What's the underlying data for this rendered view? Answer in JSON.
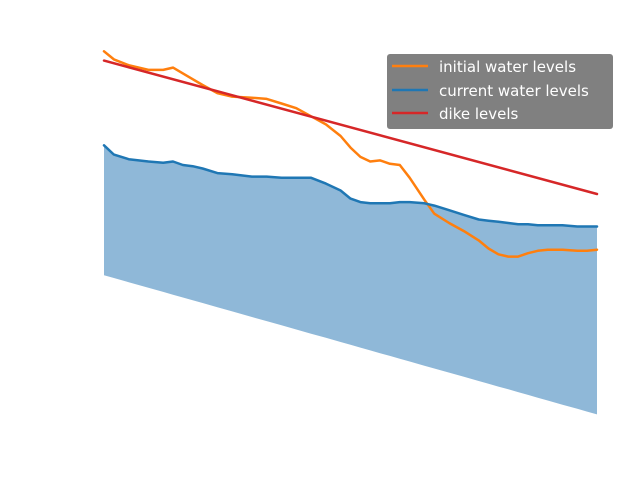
{
  "chart_data": {
    "type": "line",
    "title": "",
    "xlabel": "",
    "ylabel": "",
    "axes_visible": false,
    "grid": false,
    "legend_position": "top-right",
    "legend_background": "#808080",
    "legend_text_color": "#ffffff",
    "xlim": [
      0,
      1
    ],
    "ylim": [
      -0.5,
      3
    ],
    "fill": {
      "name": "current water levels area",
      "color": "#8fb8d8",
      "between": [
        "bed levels",
        "current water levels"
      ]
    },
    "series": [
      {
        "name": "initial water levels",
        "color": "#ff7f0e",
        "x": [
          0,
          0.02,
          0.05,
          0.09,
          0.12,
          0.14,
          0.16,
          0.18,
          0.2,
          0.23,
          0.26,
          0.3,
          0.33,
          0.36,
          0.39,
          0.42,
          0.45,
          0.48,
          0.5,
          0.52,
          0.54,
          0.56,
          0.58,
          0.6,
          0.62,
          0.65,
          0.67,
          0.7,
          0.73,
          0.76,
          0.78,
          0.8,
          0.82,
          0.84,
          0.86,
          0.88,
          0.9,
          0.93,
          0.96,
          0.98,
          1.0
        ],
        "y": [
          2.73,
          2.66,
          2.61,
          2.57,
          2.57,
          2.59,
          2.54,
          2.49,
          2.44,
          2.37,
          2.34,
          2.33,
          2.32,
          2.28,
          2.24,
          2.17,
          2.1,
          2.0,
          1.9,
          1.82,
          1.78,
          1.79,
          1.76,
          1.75,
          1.64,
          1.45,
          1.33,
          1.25,
          1.18,
          1.1,
          1.03,
          0.98,
          0.96,
          0.96,
          0.99,
          1.01,
          1.02,
          1.02,
          1.01,
          1.01,
          1.02
        ]
      },
      {
        "name": "current water levels",
        "color": "#1f77b4",
        "x": [
          0,
          0.02,
          0.05,
          0.09,
          0.12,
          0.14,
          0.16,
          0.18,
          0.2,
          0.23,
          0.26,
          0.3,
          0.33,
          0.36,
          0.39,
          0.42,
          0.45,
          0.48,
          0.5,
          0.52,
          0.54,
          0.56,
          0.58,
          0.6,
          0.62,
          0.65,
          0.67,
          0.7,
          0.73,
          0.76,
          0.78,
          0.8,
          0.82,
          0.84,
          0.86,
          0.88,
          0.9,
          0.93,
          0.96,
          0.98,
          1.0
        ],
        "y": [
          1.92,
          1.84,
          1.8,
          1.78,
          1.77,
          1.78,
          1.75,
          1.74,
          1.72,
          1.68,
          1.67,
          1.65,
          1.65,
          1.64,
          1.64,
          1.64,
          1.59,
          1.53,
          1.46,
          1.43,
          1.42,
          1.42,
          1.42,
          1.43,
          1.43,
          1.42,
          1.4,
          1.36,
          1.32,
          1.28,
          1.27,
          1.26,
          1.25,
          1.24,
          1.24,
          1.23,
          1.23,
          1.23,
          1.22,
          1.22,
          1.22
        ]
      },
      {
        "name": "dike levels",
        "color": "#d62728",
        "x": [
          0,
          1
        ],
        "y": [
          2.65,
          1.5
        ]
      }
    ],
    "bed": {
      "name": "bed levels",
      "x": [
        0,
        1
      ],
      "y": [
        0.8,
        -0.4
      ]
    }
  },
  "legend": {
    "items": [
      {
        "label": "initial water levels",
        "color": "#ff7f0e"
      },
      {
        "label": "current water levels",
        "color": "#1f77b4"
      },
      {
        "label": "dike levels",
        "color": "#d62728"
      }
    ]
  }
}
